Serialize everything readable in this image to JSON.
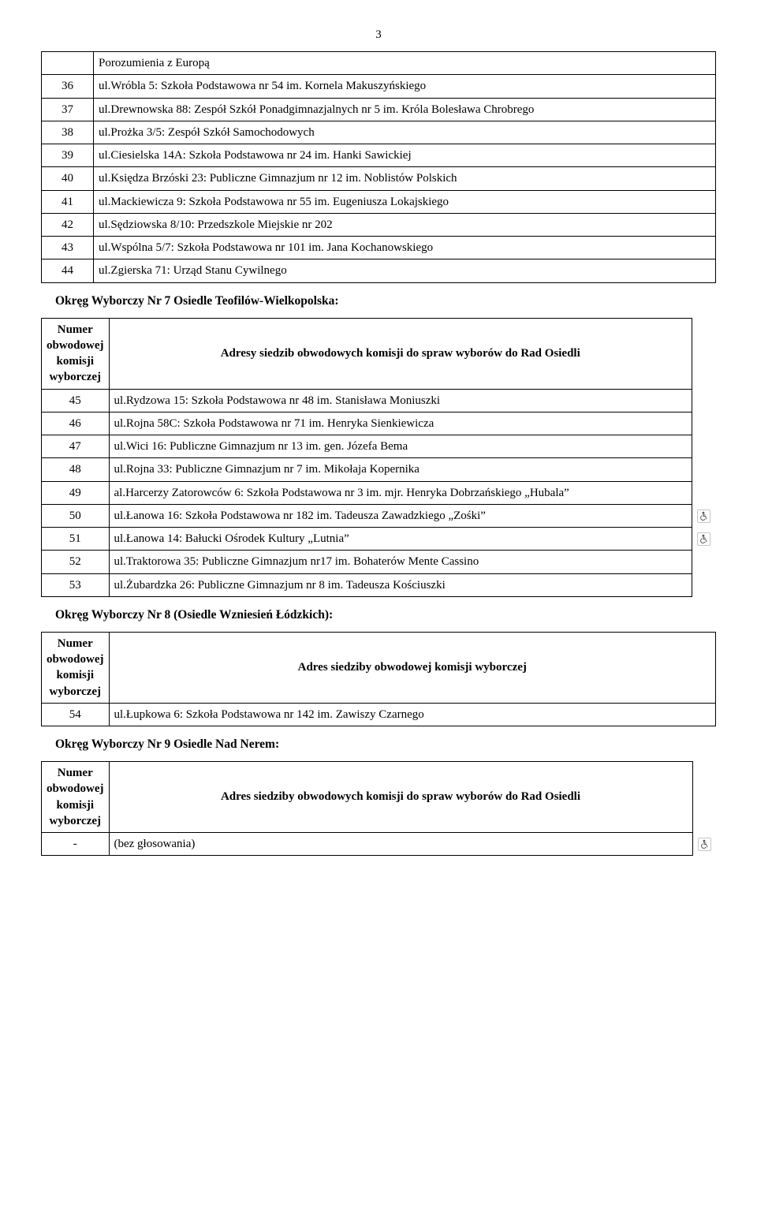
{
  "page_number": "3",
  "table_top_rows": [
    {
      "num": "",
      "text": "Porozumienia z Europą"
    },
    {
      "num": "36",
      "text": "ul.Wróbla 5: Szkoła Podstawowa nr 54 im. Kornela Makuszyńskiego"
    },
    {
      "num": "37",
      "text": "ul.Drewnowska 88: Zespół Szkół Ponadgimnazjalnych nr 5 im. Króla Bolesława Chrobrego"
    },
    {
      "num": "38",
      "text": "ul.Prożka 3/5: Zespół Szkół Samochodowych"
    },
    {
      "num": "39",
      "text": "ul.Ciesielska 14A: Szkoła Podstawowa nr 24 im. Hanki Sawickiej"
    },
    {
      "num": "40",
      "text": "ul.Księdza Brzóski 23: Publiczne Gimnazjum nr 12 im. Noblistów Polskich"
    },
    {
      "num": "41",
      "text": "ul.Mackiewicza 9: Szkoła Podstawowa nr 55 im. Eugeniusza Lokajskiego"
    },
    {
      "num": "42",
      "text": "ul.Sędziowska 8/10: Przedszkole Miejskie nr 202"
    },
    {
      "num": "43",
      "text": "ul.Wspólna 5/7: Szkoła Podstawowa nr 101 im. Jana Kochanowskiego"
    },
    {
      "num": "44",
      "text": "ul.Zgierska 71: Urząd Stanu Cywilnego"
    }
  ],
  "section7_heading": "Okręg Wyborczy Nr 7 Osiedle Teofilów-Wielkopolska:",
  "section7_header_col1": "Numer obwodowej komisji wyborczej",
  "section7_header_col2": "Adresy siedzib obwodowych  komisji do spraw wyborów do Rad Osiedli",
  "section7_rows": [
    {
      "num": "45",
      "text": "ul.Rydzowa 15: Szkoła Podstawowa nr 48 im. Stanisława Moniuszki",
      "icon": false
    },
    {
      "num": "46",
      "text": "ul.Rojna 58C: Szkoła Podstawowa nr 71 im. Henryka Sienkiewicza",
      "icon": false
    },
    {
      "num": "47",
      "text": "ul.Wici 16: Publiczne Gimnazjum nr 13 im. gen. Józefa Bema",
      "icon": false
    },
    {
      "num": "48",
      "text": "ul.Rojna 33: Publiczne Gimnazjum nr 7 im. Mikołaja Kopernika",
      "icon": false
    },
    {
      "num": "49",
      "text": "al.Harcerzy Zatorowców 6: Szkoła Podstawowa nr 3 im. mjr. Henryka Dobrzańskiego „Hubala”",
      "icon": false
    },
    {
      "num": "50",
      "text": "ul.Łanowa 16: Szkoła Podstawowa nr 182 im. Tadeusza Zawadzkiego „Zośki”",
      "icon": true
    },
    {
      "num": "51",
      "text": "ul.Łanowa 14: Bałucki Ośrodek Kultury „Lutnia”",
      "icon": true
    },
    {
      "num": "52",
      "text": "ul.Traktorowa 35: Publiczne Gimnazjum nr17 im. Bohaterów Mente Cassino",
      "icon": false
    },
    {
      "num": "53",
      "text": "ul.Żubardzka 26: Publiczne Gimnazjum nr 8 im. Tadeusza Kościuszki",
      "icon": false
    }
  ],
  "section8_heading": "Okręg Wyborczy Nr 8 (Osiedle Wzniesień Łódzkich):",
  "section8_header_col1": "Numer obwodowej komisji wyborczej",
  "section8_header_col2": "Adres siedziby obwodowej komisji wyborczej",
  "section8_rows": [
    {
      "num": "54",
      "text": "ul.Łupkowa 6: Szkoła Podstawowa nr 142 im. Zawiszy Czarnego"
    }
  ],
  "section9_heading": "Okręg Wyborczy Nr 9 Osiedle Nad Nerem:",
  "section9_header_col1": "Numer obwodowej komisji wyborczej",
  "section9_header_col2": "Adres siedziby obwodowych  komisji do spraw wyborów do Rad Osiedli",
  "section9_rows": [
    {
      "num": "-",
      "text": "(bez głosowania)",
      "icon": true
    }
  ],
  "icon_name": "wheelchair-icon",
  "icon_color": "#5a5a5a"
}
